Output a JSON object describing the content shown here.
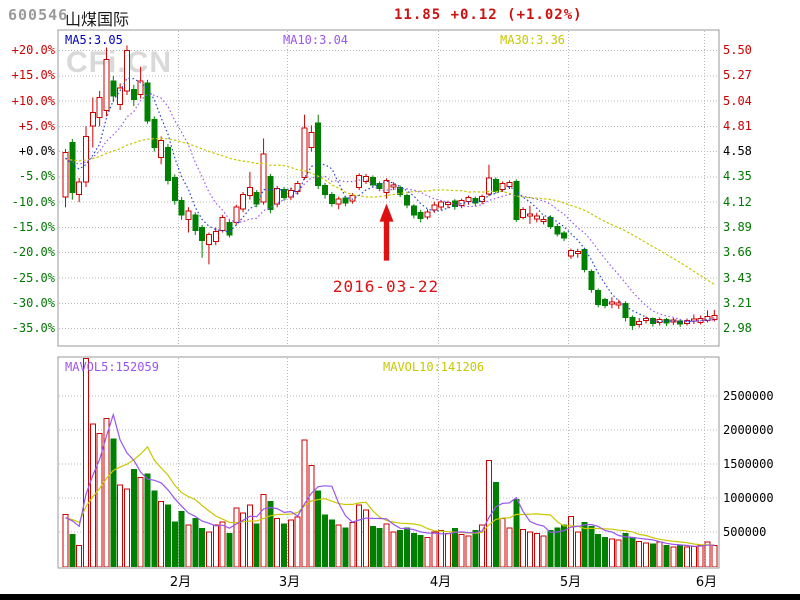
{
  "header": {
    "code": "600546",
    "name": "山煤国际",
    "quote": "11.85 +0.12 (+1.02%)"
  },
  "watermark": "CFi.CN",
  "price_panel": {
    "ma5_label": "MA5:3.05",
    "ma10_label": "MA10:3.04",
    "ma30_label": "MA30:3.36",
    "annotation": "2016-03-22"
  },
  "volume_panel": {
    "mavol5_label": "MAVOL5:152059",
    "mavol10_label": "MAVOL10:141206"
  },
  "colors": {
    "up": "#cc0000",
    "down": "#008000",
    "ma5": "#2244cc",
    "ma10": "#9a55ee",
    "ma30": "#c8c800",
    "mavol5": "#9a55ee",
    "mavol10": "#c8c800",
    "axis_red": "#cc0000",
    "axis_green": "#007700",
    "axis_black": "#000000",
    "grid": "#b8b8b8",
    "border": "#999999",
    "annotation": "#dd1111",
    "ma5_label": "#0000bb",
    "code_gray": "#9a9a9a",
    "quote_red": "#cc1111"
  },
  "chart_data": {
    "type": "candlestick+volume",
    "title": "600546 山煤国际",
    "base_price": 4.58,
    "pct_axis": [
      20,
      15,
      10,
      5,
      0,
      -5,
      -10,
      -15,
      -20,
      -25,
      -30,
      -35
    ],
    "pct_axis_labels": [
      "+20.0%",
      "+15.0%",
      "+10.0%",
      "+5.0%",
      "+0.0%",
      "-5.0%",
      "-10.0%",
      "-15.0%",
      "-20.0%",
      "-25.0%",
      "-30.0%",
      "-35.0%"
    ],
    "price_axis_labels": [
      "5.50",
      "5.27",
      "5.04",
      "4.81",
      "4.58",
      "4.35",
      "4.12",
      "3.89",
      "3.66",
      "3.43",
      "3.21",
      "2.98"
    ],
    "volume_axis": [
      2500000,
      2000000,
      1500000,
      1000000,
      500000
    ],
    "volume_axis_labels": [
      "2500000",
      "2000000",
      "1500000",
      "1000000",
      "500000"
    ],
    "months": [
      "2月",
      "3月",
      "4月",
      "5月",
      "6月"
    ],
    "month_boundary_indices": [
      17,
      33,
      55,
      74,
      94
    ],
    "annotation_index": 47,
    "annotation_text": "2016-03-22",
    "ma_seed_pct": -1.5,
    "ma_seed_vol": 700,
    "candles_format": [
      "open_pct",
      "close_pct",
      "low_pct",
      "high_pct",
      "volume_k"
    ],
    "candles": [
      [
        -9,
        -0.2,
        -11,
        0.5,
        760
      ],
      [
        1.8,
        -8.1,
        -9.5,
        2.5,
        460
      ],
      [
        -8.5,
        -6,
        -10,
        -5.2,
        300
      ],
      [
        -6,
        3,
        -7,
        5,
        3050
      ],
      [
        5.1,
        7.7,
        0.8,
        10.7,
        2090
      ],
      [
        6.7,
        10.7,
        5,
        12,
        1950
      ],
      [
        8.1,
        18.2,
        7,
        20.6,
        2170
      ],
      [
        14,
        11,
        9.8,
        15,
        1870
      ],
      [
        9.3,
        12.6,
        8.2,
        13.5,
        1190
      ],
      [
        12,
        20,
        11.2,
        21,
        1130
      ],
      [
        12.3,
        10.3,
        9,
        13.2,
        1420
      ],
      [
        11.3,
        14,
        10.5,
        16.8,
        1300
      ],
      [
        13.6,
        6.1,
        5.5,
        14.2,
        1350
      ],
      [
        6.3,
        0.8,
        0,
        7,
        1100
      ],
      [
        -1.2,
        2.2,
        -2.5,
        3,
        950
      ],
      [
        0.8,
        -5.7,
        -6.5,
        1.5,
        900
      ],
      [
        -5.1,
        -9.7,
        -10.5,
        -4.5,
        650
      ],
      [
        -9.7,
        -12.5,
        -13.5,
        -9,
        800
      ],
      [
        -13.4,
        -11.7,
        -16,
        -11,
        600
      ],
      [
        -12.5,
        -15.6,
        -16.5,
        -12,
        700
      ],
      [
        -15,
        -17.6,
        -21,
        -14.5,
        550
      ],
      [
        -18.4,
        -16.4,
        -22.3,
        -16,
        500
      ],
      [
        -17.8,
        -15.8,
        -18.5,
        -15,
        600
      ],
      [
        -15.6,
        -13,
        -16,
        -12.5,
        650
      ],
      [
        -14,
        -16.5,
        -17,
        -13.5,
        480
      ],
      [
        -14,
        -11,
        -14.5,
        -10.5,
        850
      ],
      [
        -11.4,
        -8.5,
        -12,
        -8,
        780
      ],
      [
        -8.7,
        -7.1,
        -9.5,
        -4,
        900
      ],
      [
        -8.1,
        -10.4,
        -11,
        -7.6,
        620
      ],
      [
        -10,
        -0.5,
        -10.5,
        2.6,
        1050
      ],
      [
        -4.9,
        -11.5,
        -12.2,
        -4.4,
        950
      ],
      [
        -10.4,
        -7.3,
        -11,
        -6.8,
        700
      ],
      [
        -7.5,
        -9.1,
        -9.7,
        -7,
        620
      ],
      [
        -9,
        -7.7,
        -9.6,
        -7.2,
        680
      ],
      [
        -7.9,
        -6.3,
        -8.4,
        -5.8,
        720
      ],
      [
        -5.1,
        4.7,
        -5.6,
        7.3,
        1850
      ],
      [
        0.8,
        3.8,
        0,
        5.2,
        1480
      ],
      [
        5.7,
        -6.7,
        -7.4,
        7.3,
        1100
      ],
      [
        -6.7,
        -8.5,
        -9.3,
        -6.2,
        750
      ],
      [
        -8.5,
        -10.3,
        -10.9,
        -8,
        680
      ],
      [
        -10.4,
        -9.4,
        -11.4,
        -8.9,
        600
      ],
      [
        -9.2,
        -10.2,
        -10.8,
        -8.8,
        560
      ],
      [
        -9.8,
        -8.7,
        -10.3,
        -8.2,
        640
      ],
      [
        -7.1,
        -4.7,
        -7.6,
        -4.3,
        900
      ],
      [
        -5.9,
        -4.9,
        -6.4,
        -4.4,
        820
      ],
      [
        -5.1,
        -6.6,
        -7.1,
        -4.7,
        580
      ],
      [
        -6.3,
        -7.3,
        -7.8,
        -5.9,
        550
      ],
      [
        -8.1,
        -5.7,
        -9.3,
        -5.3,
        620
      ],
      [
        -7,
        -6.6,
        -7.6,
        -6,
        500
      ],
      [
        -7.1,
        -8.5,
        -9,
        -6.7,
        520
      ],
      [
        -8.7,
        -10.6,
        -11.2,
        -8.3,
        560
      ],
      [
        -10.8,
        -12.5,
        -13.2,
        -10.4,
        480
      ],
      [
        -12,
        -13.2,
        -14,
        -11.5,
        450
      ],
      [
        -12.9,
        -11.9,
        -13.4,
        -11.4,
        420
      ],
      [
        -11.6,
        -10.6,
        -12.1,
        -9.9,
        500
      ],
      [
        -11,
        -10,
        -11.6,
        -9.6,
        520
      ],
      [
        -10.5,
        -10.1,
        -11.2,
        -9.7,
        480
      ],
      [
        -9.8,
        -10.9,
        -11.5,
        -9.4,
        550
      ],
      [
        -10.7,
        -9.7,
        -11.2,
        -9.3,
        460
      ],
      [
        -9.9,
        -9.1,
        -10.5,
        -8.7,
        440
      ],
      [
        -9.3,
        -10.2,
        -10.8,
        -8.9,
        520
      ],
      [
        -9.9,
        -8.9,
        -10.4,
        -8.5,
        600
      ],
      [
        -8.4,
        -5.2,
        -8.8,
        -2.6,
        1550
      ],
      [
        -5.5,
        -7.9,
        -8.3,
        -5.1,
        1230
      ],
      [
        -7.5,
        -6.3,
        -8,
        -5.9,
        700
      ],
      [
        -6.9,
        -6.1,
        -7.4,
        -5.7,
        560
      ],
      [
        -5.9,
        -13.4,
        -13.9,
        -5.5,
        980
      ],
      [
        -13,
        -11.5,
        -13.4,
        -11,
        540
      ],
      [
        -12.7,
        -12.3,
        -14.3,
        -10.7,
        500
      ],
      [
        -13.3,
        -12.7,
        -14,
        -12.1,
        480
      ],
      [
        -13.8,
        -13.4,
        -14.4,
        -12.8,
        440
      ],
      [
        -13,
        -14.8,
        -15.3,
        -12.6,
        520
      ],
      [
        -14.8,
        -16.3,
        -16.8,
        -14.3,
        560
      ],
      [
        -16.1,
        -17.1,
        -17.7,
        -15.7,
        600
      ],
      [
        -20.6,
        -19.6,
        -21.2,
        -19.2,
        730
      ],
      [
        -20.2,
        -19.8,
        -21,
        -19.2,
        500
      ],
      [
        -19.4,
        -23.3,
        -23.9,
        -19,
        640
      ],
      [
        -23.7,
        -27.3,
        -27.9,
        -23.3,
        580
      ],
      [
        -27.5,
        -30.2,
        -30.8,
        -27.1,
        460
      ],
      [
        -29.3,
        -30.4,
        -31,
        -28.9,
        420
      ],
      [
        -30.1,
        -29.7,
        -31,
        -28.8,
        400
      ],
      [
        -30.3,
        -29.9,
        -31.1,
        -29.3,
        380
      ],
      [
        -30,
        -32.8,
        -33.6,
        -29.6,
        480
      ],
      [
        -32.8,
        -34.4,
        -35.3,
        -32.4,
        420
      ],
      [
        -34.2,
        -33.6,
        -34.8,
        -32.9,
        360
      ],
      [
        -33.4,
        -33,
        -34,
        -32.6,
        340
      ],
      [
        -33,
        -34,
        -34.6,
        -32.8,
        320
      ],
      [
        -33.8,
        -33.2,
        -34.4,
        -32.8,
        350
      ],
      [
        -33.2,
        -33.9,
        -34.5,
        -32.9,
        300
      ],
      [
        -33.7,
        -33.3,
        -34.3,
        -32.9,
        280
      ],
      [
        -33.5,
        -34.1,
        -34.7,
        -33.1,
        300
      ],
      [
        -34,
        -33.4,
        -34.4,
        -33,
        280
      ],
      [
        -33.5,
        -33.1,
        -34.1,
        -32.2,
        290
      ],
      [
        -33.8,
        -33,
        -34.2,
        -32.4,
        310
      ],
      [
        -33.4,
        -32.6,
        -33.8,
        -31.4,
        350
      ],
      [
        -33.2,
        -32.4,
        -33.6,
        -31.3,
        300
      ]
    ]
  }
}
